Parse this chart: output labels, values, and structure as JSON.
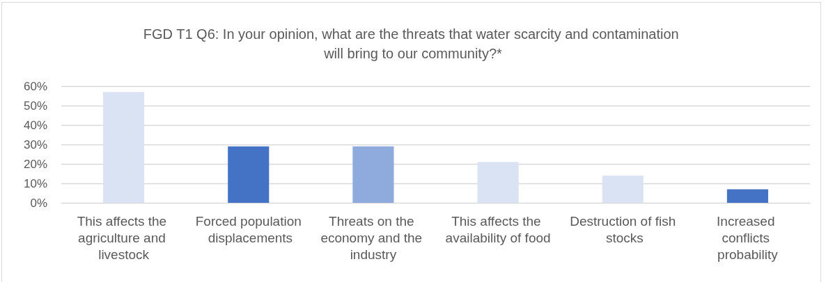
{
  "chart_data": {
    "type": "bar",
    "title": "FGD T1 Q6: In your opinion, what are the threats that water scarcity and contamination will bring to our community?*",
    "categories": [
      "This affects the agriculture and livestock",
      "Forced population displacements",
      "Threats on the economy and the industry",
      "This affects the availability of food",
      "Destruction of fish stocks",
      "Increased conflicts probability"
    ],
    "values": [
      57,
      29,
      29,
      21,
      14,
      7
    ],
    "colors": [
      "#dae3f3",
      "#4472c4",
      "#8faadc",
      "#dae3f3",
      "#dae3f3",
      "#4472c4"
    ],
    "ylim": [
      0,
      60
    ],
    "yticks": [
      {
        "value": 0,
        "label": "0%"
      },
      {
        "value": 10,
        "label": "10%"
      },
      {
        "value": 20,
        "label": "20%"
      },
      {
        "value": 30,
        "label": "30%"
      },
      {
        "value": 40,
        "label": "40%"
      },
      {
        "value": 50,
        "label": "50%"
      },
      {
        "value": 60,
        "label": "60%"
      }
    ],
    "grid": "y"
  }
}
